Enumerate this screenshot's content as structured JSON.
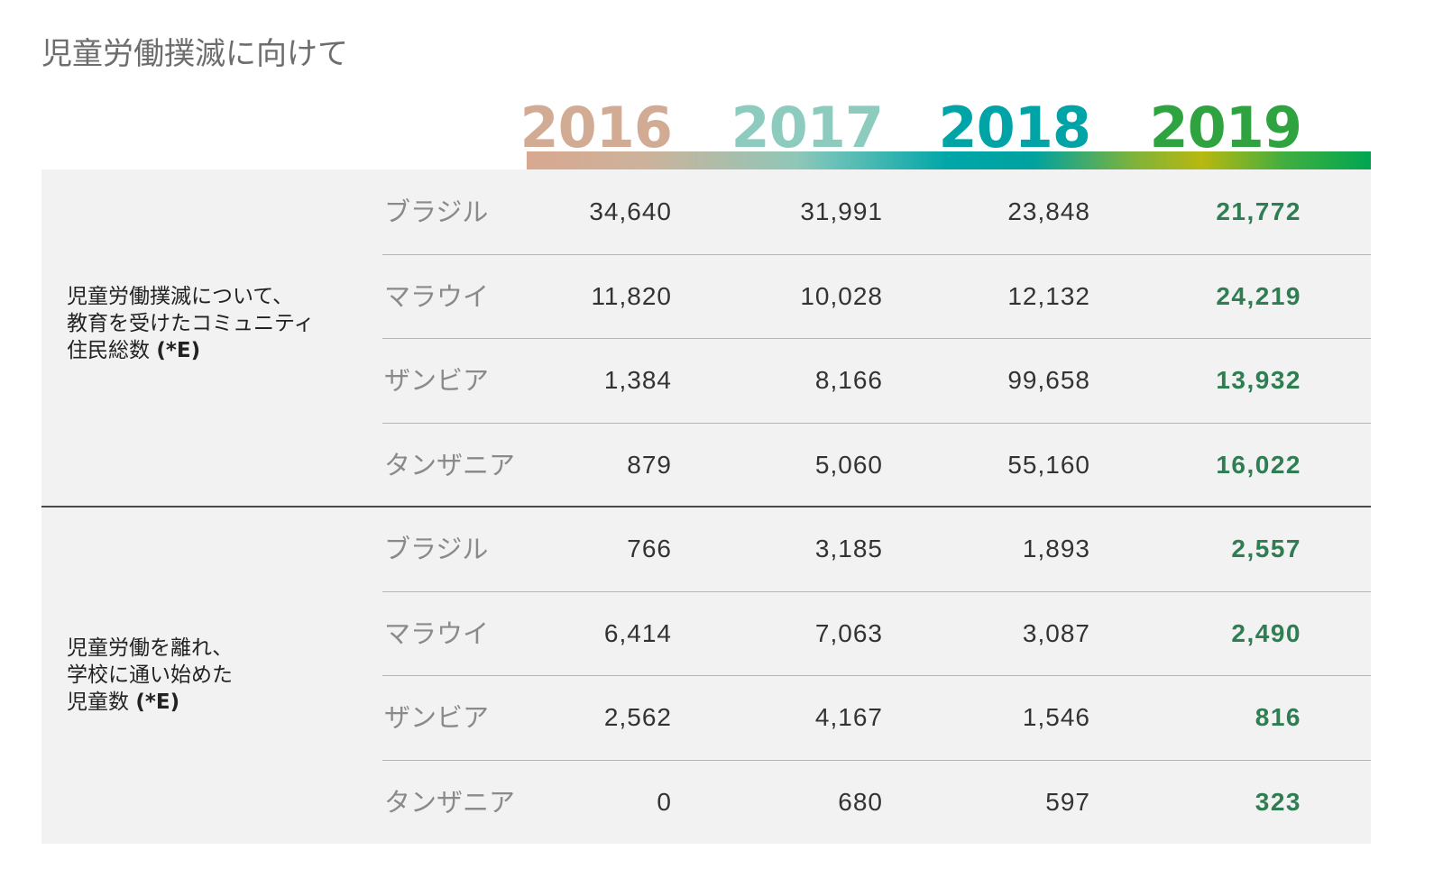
{
  "title": "児童労働撲滅に向けて",
  "years": [
    {
      "label": "2016",
      "color": "#d2ab94"
    },
    {
      "label": "2017",
      "color": "#8ccbbd"
    },
    {
      "label": "2018",
      "color": "#00a3a6"
    },
    {
      "label": "2019",
      "color": "#2ea340"
    }
  ],
  "groups": [
    {
      "label_lines": [
        "児童労働撲滅について、",
        "教育を受けたコミュニティ",
        "住民総数 "
      ],
      "note": "(*E)",
      "rows": [
        {
          "country": "ブラジル",
          "values": [
            "34,640",
            "31,991",
            "23,848",
            "21,772"
          ]
        },
        {
          "country": "マラウイ",
          "values": [
            "11,820",
            "10,028",
            "12,132",
            "24,219"
          ]
        },
        {
          "country": "ザンビア",
          "values": [
            "1,384",
            "8,166",
            "99,658",
            "13,932"
          ]
        },
        {
          "country": "タンザニア",
          "values": [
            "879",
            "5,060",
            "55,160",
            "16,022"
          ]
        }
      ]
    },
    {
      "label_lines": [
        "児童労働を離れ、",
        "学校に通い始めた",
        "児童数 "
      ],
      "note": "(*E)",
      "rows": [
        {
          "country": "ブラジル",
          "values": [
            "766",
            "3,185",
            "1,893",
            "2,557"
          ]
        },
        {
          "country": "マラウイ",
          "values": [
            "6,414",
            "7,063",
            "3,087",
            "2,490"
          ]
        },
        {
          "country": "ザンビア",
          "values": [
            "2,562",
            "4,167",
            "1,546",
            "816"
          ]
        },
        {
          "country": "タンザニア",
          "values": [
            "0",
            "680",
            "597",
            "323"
          ]
        }
      ]
    }
  ]
}
